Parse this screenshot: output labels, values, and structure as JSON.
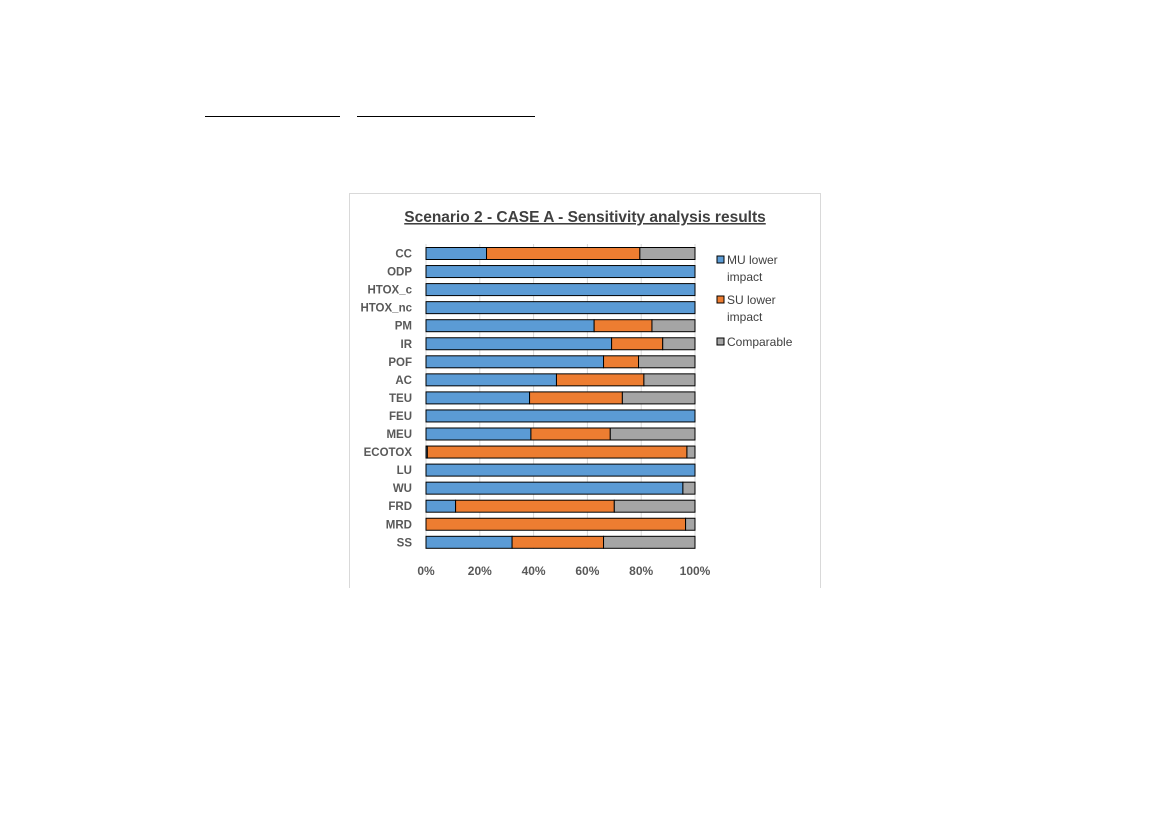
{
  "chart_data": {
    "type": "bar",
    "orientation": "horizontal",
    "stacked": "percent",
    "title": "Scenario 2 - CASE A - Sensitivity analysis results",
    "categories": [
      "CC",
      "ODP",
      "HTOX_c",
      "HTOX_nc",
      "PM",
      "IR",
      "POF",
      "AC",
      "TEU",
      "FEU",
      "MEU",
      "ECOTOX",
      "LU",
      "WU",
      "FRD",
      "MRD",
      "SS"
    ],
    "series": [
      {
        "name": "MU lower\nimpact",
        "color": "#5b9bd5",
        "values": [
          22.5,
          100,
          100,
          100,
          62.5,
          69,
          66,
          48.5,
          38.5,
          100,
          39,
          0.5,
          100,
          95.5,
          11,
          0,
          32
        ]
      },
      {
        "name": "SU lower\nimpact",
        "color": "#ed7d31",
        "values": [
          57,
          0,
          0,
          0,
          21.5,
          19,
          13,
          32.5,
          34.5,
          0,
          29.5,
          96.5,
          0,
          0,
          59,
          96.5,
          34
        ]
      },
      {
        "name": "Comparable",
        "color": "#a5a5a5",
        "values": [
          20.5,
          0,
          0,
          0,
          16,
          12,
          21,
          19,
          27,
          0,
          31.5,
          3,
          0,
          4.5,
          30,
          3.5,
          34
        ]
      }
    ],
    "xticks": [
      "0%",
      "20%",
      "40%",
      "60%",
      "80%",
      "100%"
    ],
    "xlim": [
      0,
      100
    ],
    "grid": true,
    "legend": "right"
  }
}
